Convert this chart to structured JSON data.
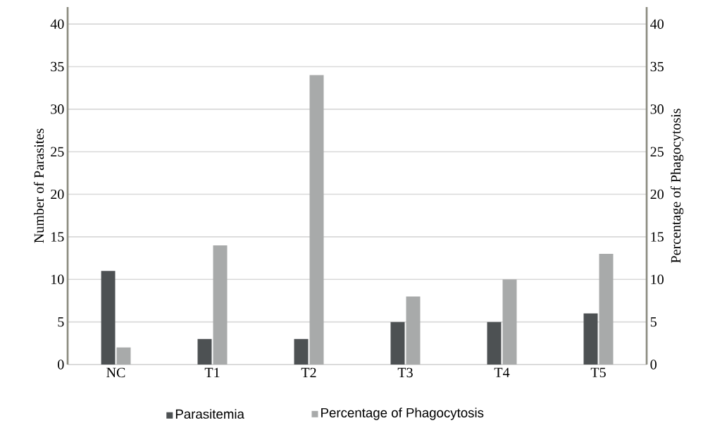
{
  "chart_data": {
    "type": "bar",
    "categories": [
      "NC",
      "T1",
      "T2",
      "T3",
      "T4",
      "T5"
    ],
    "series": [
      {
        "name": "Parasitemia",
        "color": "#4d5153",
        "values": [
          11,
          3,
          3,
          5,
          5,
          6
        ]
      },
      {
        "name": "Percentage of Phagocytosis",
        "color": "#a8aaaa",
        "values": [
          2,
          14,
          34,
          8,
          10,
          13
        ],
        "axis": "y2"
      }
    ],
    "ylabel": "Number of Parasites",
    "y2label": "Percentage of Phagocytosis",
    "ylim": [
      0,
      42
    ],
    "yticks": [
      0,
      5,
      10,
      15,
      20,
      25,
      30,
      35,
      40
    ],
    "y2lim": [
      0,
      42
    ],
    "y2ticks": [
      0,
      5,
      10,
      15,
      20,
      25,
      30,
      35,
      40
    ],
    "grid": "y",
    "legend": "bottom"
  }
}
